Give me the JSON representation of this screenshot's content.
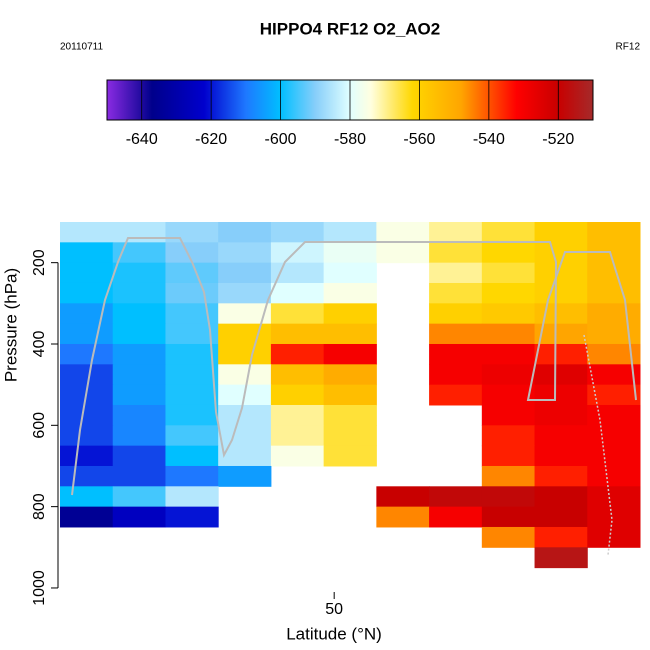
{
  "chart_data": {
    "type": "heatmap",
    "title": "HIPPO4 RF12 O2_AO2",
    "subtitle_left": "20110711",
    "subtitle_right": "RF12",
    "x_label": "Latitude (°N)",
    "y_label": "Pressure (hPa)",
    "xlim": [
      29.2,
      73.2
    ],
    "xticks": [
      50
    ],
    "ylim": [
      100,
      1005
    ],
    "yticks": [
      200,
      400,
      600,
      800,
      1000
    ],
    "y_inverted": true,
    "x_edges": [
      29.2,
      33.2,
      37.2,
      41.2,
      45.2,
      49.2,
      53.2,
      57.2,
      61.2,
      65.2,
      69.2,
      73.2
    ],
    "y_edges": [
      100,
      150,
      200,
      250,
      300,
      350,
      400,
      450,
      500,
      550,
      600,
      650,
      700,
      750,
      800,
      850,
      900,
      950
    ],
    "z": [
      [
        -585,
        -585,
        -588,
        -590,
        -588,
        -585,
        -575,
        -570,
        -565,
        -560,
        -555
      ],
      [
        -600,
        -595,
        -590,
        -588,
        -582,
        -578,
        -575,
        -565,
        -562,
        -560,
        -555
      ],
      [
        -600,
        -598,
        -593,
        -590,
        -585,
        -580,
        null,
        -570,
        -565,
        -560,
        -555
      ],
      [
        -600,
        -598,
        -592,
        -588,
        -580,
        -575,
        null,
        -565,
        -562,
        -560,
        -555
      ],
      [
        -605,
        -600,
        -595,
        -575,
        -565,
        -560,
        null,
        -560,
        -558,
        -555,
        -550
      ],
      [
        -605,
        -600,
        -595,
        -560,
        -555,
        -555,
        null,
        -545,
        -545,
        -548,
        -550
      ],
      [
        -610,
        -605,
        -598,
        -560,
        -535,
        -530,
        null,
        -530,
        -530,
        -535,
        -545
      ],
      [
        -615,
        -605,
        -598,
        -575,
        -555,
        -550,
        null,
        -530,
        -528,
        -525,
        -530
      ],
      [
        -615,
        -605,
        -598,
        -580,
        -560,
        -555,
        null,
        -535,
        -530,
        -528,
        -535
      ],
      [
        -615,
        -608,
        -598,
        -585,
        -570,
        -565,
        null,
        null,
        -530,
        -528,
        -530
      ],
      [
        -615,
        -608,
        -595,
        -585,
        -570,
        -565,
        null,
        null,
        -535,
        -530,
        -530
      ],
      [
        -620,
        -615,
        -600,
        -585,
        -575,
        -565,
        null,
        null,
        -535,
        -530,
        -530
      ],
      [
        -615,
        -615,
        -610,
        -605,
        null,
        null,
        null,
        null,
        -545,
        -535,
        -530
      ],
      [
        -600,
        -595,
        -585,
        null,
        null,
        null,
        -520,
        -518,
        -518,
        -520,
        -525
      ],
      [
        -635,
        -625,
        -620,
        null,
        null,
        null,
        -545,
        -530,
        -520,
        -520,
        -525
      ],
      [
        null,
        null,
        null,
        null,
        null,
        null,
        null,
        null,
        -545,
        -535,
        -525
      ],
      [
        null,
        null,
        null,
        null,
        null,
        null,
        null,
        null,
        null,
        -515,
        null
      ]
    ],
    "clim": [
      -650,
      -510
    ],
    "cticks": [
      -640,
      -620,
      -600,
      -580,
      -560,
      -540,
      -520
    ],
    "colorscale": [
      [
        -650,
        "#8a2be2"
      ],
      [
        -637,
        "#00008b"
      ],
      [
        -622,
        "#0000cd"
      ],
      [
        -610,
        "#1e78ff"
      ],
      [
        -600,
        "#00bfff"
      ],
      [
        -590,
        "#87cefa"
      ],
      [
        -580,
        "#e0ffff"
      ],
      [
        -574,
        "#ffffe0"
      ],
      [
        -562,
        "#ffd700"
      ],
      [
        -548,
        "#ffa500"
      ],
      [
        -532,
        "#ff0000"
      ],
      [
        -520,
        "#c80000"
      ],
      [
        -510,
        "#a52a2a"
      ]
    ]
  }
}
